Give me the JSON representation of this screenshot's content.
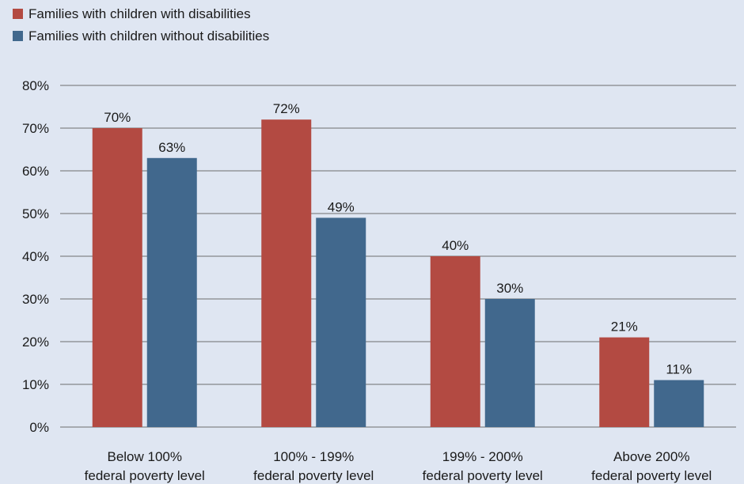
{
  "chart_data": {
    "type": "bar",
    "categories": [
      [
        "Below 100%",
        "federal poverty level"
      ],
      [
        "100% - 199%",
        "federal poverty level"
      ],
      [
        "199% - 200%",
        "federal poverty level"
      ],
      [
        "Above 200%",
        "federal poverty level"
      ]
    ],
    "series": [
      {
        "name": "Families with children with disabilities",
        "color": "#b34a42",
        "values": [
          70,
          72,
          40,
          21
        ],
        "labels": [
          "70%",
          "72%",
          "40%",
          "21%"
        ]
      },
      {
        "name": "Families with children without disabilities",
        "color": "#41688d",
        "values": [
          63,
          49,
          30,
          11
        ],
        "labels": [
          "63%",
          "49%",
          "30%",
          "11%"
        ]
      }
    ],
    "ylim": [
      0,
      80
    ],
    "yticks": [
      0,
      10,
      20,
      30,
      40,
      50,
      60,
      70,
      80
    ],
    "ytick_labels": [
      "0%",
      "10%",
      "20%",
      "30%",
      "40%",
      "50%",
      "60%",
      "70%",
      "80%"
    ],
    "grid": true,
    "legend_position": "top-left",
    "title": "",
    "xlabel": "",
    "ylabel": ""
  },
  "colors": {
    "background": "#dfe6f2",
    "gridline": "#6e6e6e"
  }
}
